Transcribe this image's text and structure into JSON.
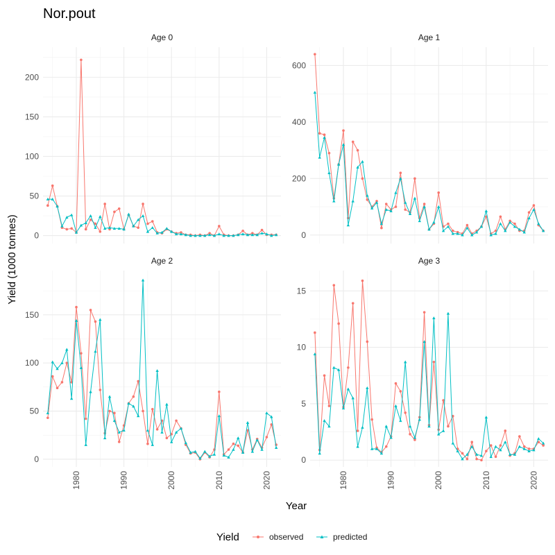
{
  "chart_data": {
    "type": "line",
    "title": "Nor.pout",
    "xlabel": "Year",
    "ylabel": "Yield (1000 tonnes)",
    "legend": {
      "title": "Yield",
      "position": "bottom"
    },
    "colors": {
      "observed": "#F8766D",
      "predicted": "#00BFC4"
    },
    "x": [
      1974,
      1975,
      1976,
      1977,
      1978,
      1979,
      1980,
      1981,
      1982,
      1983,
      1984,
      1985,
      1986,
      1987,
      1988,
      1989,
      1990,
      1991,
      1992,
      1993,
      1994,
      1995,
      1996,
      1997,
      1998,
      1999,
      2000,
      2001,
      2002,
      2003,
      2004,
      2005,
      2006,
      2007,
      2008,
      2009,
      2010,
      2011,
      2012,
      2013,
      2014,
      2015,
      2016,
      2017,
      2018,
      2019,
      2020,
      2021,
      2022
    ],
    "xticks": [
      1980,
      1990,
      2000,
      2010,
      2020
    ],
    "xlim": [
      1973,
      2023
    ],
    "panels": [
      {
        "label": "Age 0",
        "ylim": [
          -10,
          238
        ],
        "yticks": [
          0,
          50,
          100,
          150,
          200
        ],
        "series": [
          {
            "name": "observed",
            "values": [
              38,
              63,
              37,
              10,
              8,
              9,
              4,
              222,
              8,
              20,
              15,
              5,
              40,
              8,
              30,
              34,
              8,
              26,
              12,
              10,
              40,
              15,
              18,
              4,
              3,
              8,
              5,
              3,
              4,
              1,
              1,
              0,
              1,
              0,
              3,
              0,
              12,
              1,
              0,
              0,
              1,
              6,
              1,
              3,
              1,
              7,
              1,
              1,
              1
            ]
          },
          {
            "name": "predicted",
            "values": [
              46,
              46,
              37,
              12,
              23,
              26,
              4,
              13,
              16,
              25,
              10,
              24,
              9,
              10,
              9,
              9,
              8,
              27,
              12,
              20,
              25,
              5,
              10,
              3,
              4,
              9,
              5,
              2,
              2,
              1,
              0,
              0,
              0,
              0,
              1,
              0,
              2,
              0,
              0,
              0,
              1,
              2,
              1,
              1,
              1,
              3,
              2,
              0,
              1
            ]
          }
        ]
      },
      {
        "label": "Age 1",
        "ylim": [
          -30,
          665
        ],
        "yticks": [
          0,
          200,
          400,
          600
        ],
        "series": [
          {
            "name": "observed",
            "values": [
              640,
              360,
              355,
              290,
              130,
              250,
              370,
              60,
              330,
              300,
              200,
              125,
              100,
              120,
              25,
              110,
              90,
              100,
              220,
              90,
              80,
              200,
              60,
              110,
              20,
              40,
              150,
              30,
              40,
              15,
              10,
              5,
              35,
              5,
              15,
              30,
              65,
              5,
              15,
              65,
              20,
              50,
              40,
              15,
              15,
              80,
              105,
              35,
              15
            ]
          },
          {
            "name": "predicted",
            "values": [
              505,
              275,
              345,
              220,
              120,
              250,
              320,
              35,
              120,
              240,
              260,
              140,
              95,
              115,
              40,
              90,
              85,
              150,
              200,
              115,
              75,
              130,
              50,
              100,
              20,
              45,
              100,
              15,
              30,
              5,
              5,
              0,
              25,
              0,
              10,
              30,
              85,
              0,
              5,
              40,
              15,
              45,
              30,
              20,
              10,
              60,
              90,
              40,
              15
            ]
          }
        ]
      },
      {
        "label": "Age 2",
        "ylim": [
          -8,
          196
        ],
        "yticks": [
          0,
          50,
          100,
          150
        ],
        "series": [
          {
            "name": "observed",
            "values": [
              43,
              86,
              74,
              80,
              100,
              80,
              158,
              110,
              42,
              155,
              143,
              72,
              27,
              50,
              48,
              18,
              35,
              58,
              65,
              81,
              50,
              16,
              52,
              31,
              40,
              22,
              26,
              40,
              32,
              15,
              6,
              7,
              0,
              7,
              2,
              10,
              70,
              5,
              10,
              16,
              14,
              7,
              30,
              10,
              21,
              12,
              23,
              36,
              15
            ]
          },
          {
            "name": "predicted",
            "values": [
              48,
              101,
              94,
              100,
              114,
              63,
              144,
              95,
              15,
              70,
              112,
              145,
              22,
              65,
              40,
              28,
              30,
              58,
              55,
              45,
              186,
              30,
              15,
              92,
              28,
              57,
              18,
              28,
              32,
              17,
              7,
              8,
              1,
              8,
              3,
              5,
              45,
              4,
              2,
              10,
              22,
              7,
              38,
              8,
              20,
              10,
              48,
              44,
              12
            ]
          }
        ]
      },
      {
        "label": "Age 3",
        "ylim": [
          -0.6,
          16.8
        ],
        "yticks": [
          0,
          5,
          10,
          15
        ],
        "series": [
          {
            "name": "observed",
            "values": [
              11.3,
              0.9,
              7.5,
              4.8,
              15.5,
              12.1,
              4.7,
              8.2,
              13.9,
              2.6,
              15.9,
              10.5,
              3.6,
              1.1,
              0.7,
              1.2,
              2.1,
              6.8,
              6.1,
              4.2,
              2.3,
              1.8,
              3.8,
              13.1,
              3.1,
              8.7,
              2.7,
              5.3,
              3.0,
              3.9,
              1.0,
              0.6,
              0.1,
              1.6,
              0.1,
              0,
              0.8,
              1.3,
              0.3,
              1.3,
              2.6,
              0.4,
              0.6,
              2.1,
              1.2,
              1.0,
              1.0,
              1.6,
              1.3
            ]
          },
          {
            "name": "predicted",
            "values": [
              9.4,
              0.6,
              3.5,
              3.0,
              8.2,
              8.0,
              4.6,
              6.3,
              5.5,
              1.2,
              2.9,
              6.4,
              1.0,
              1.0,
              0.6,
              3.0,
              2.0,
              4.8,
              3.5,
              8.7,
              3.0,
              2.0,
              3.6,
              10.5,
              3.0,
              12.6,
              2.3,
              2.6,
              13.0,
              1.5,
              0.8,
              0.1,
              0.5,
              1.2,
              0.5,
              0.4,
              3.8,
              0.3,
              1.2,
              0.9,
              1.6,
              0.5,
              0.5,
              1.2,
              1.0,
              0.8,
              0.9,
              1.9,
              1.5
            ]
          }
        ]
      }
    ]
  }
}
